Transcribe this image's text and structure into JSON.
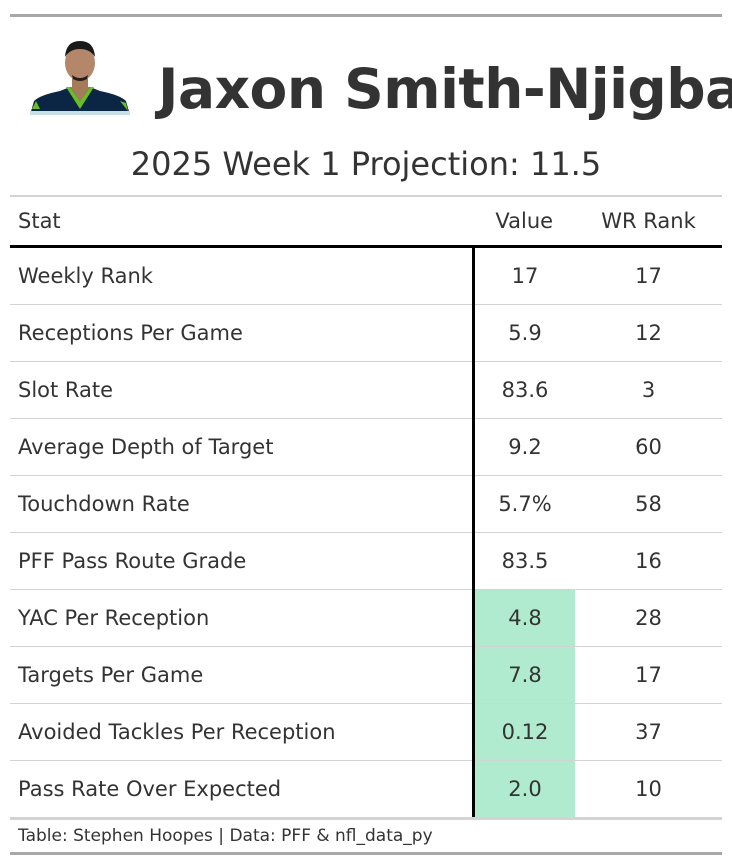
{
  "title": {
    "player_name": "Jaxon Smith-Njigba",
    "subtitle": "2025 Week 1 Projection: 11.5"
  },
  "colors": {
    "highlight": "#b1ebcf",
    "jersey_navy": "#002244",
    "jersey_green": "#69be28"
  },
  "table": {
    "columns": [
      "Stat",
      "Value",
      "WR Rank"
    ],
    "rows": [
      {
        "stat": "Weekly Rank",
        "value": "17",
        "rank": "17",
        "highlight": false
      },
      {
        "stat": "Receptions Per Game",
        "value": "5.9",
        "rank": "12",
        "highlight": false
      },
      {
        "stat": "Slot Rate",
        "value": "83.6",
        "rank": "3",
        "highlight": false
      },
      {
        "stat": "Average Depth of Target",
        "value": "9.2",
        "rank": "60",
        "highlight": false
      },
      {
        "stat": "Touchdown Rate",
        "value": "5.7%",
        "rank": "58",
        "highlight": false
      },
      {
        "stat": "PFF Pass Route Grade",
        "value": "83.5",
        "rank": "16",
        "highlight": false
      },
      {
        "stat": "YAC Per Reception",
        "value": "4.8",
        "rank": "28",
        "highlight": true
      },
      {
        "stat": "Targets Per Game",
        "value": "7.8",
        "rank": "17",
        "highlight": true
      },
      {
        "stat": "Avoided Tackles Per Reception",
        "value": "0.12",
        "rank": "37",
        "highlight": true
      },
      {
        "stat": "Pass Rate Over Expected",
        "value": "2.0",
        "rank": "10",
        "highlight": true
      }
    ]
  },
  "footnote": "Table: Stephen Hoopes | Data: PFF & nfl_data_py"
}
